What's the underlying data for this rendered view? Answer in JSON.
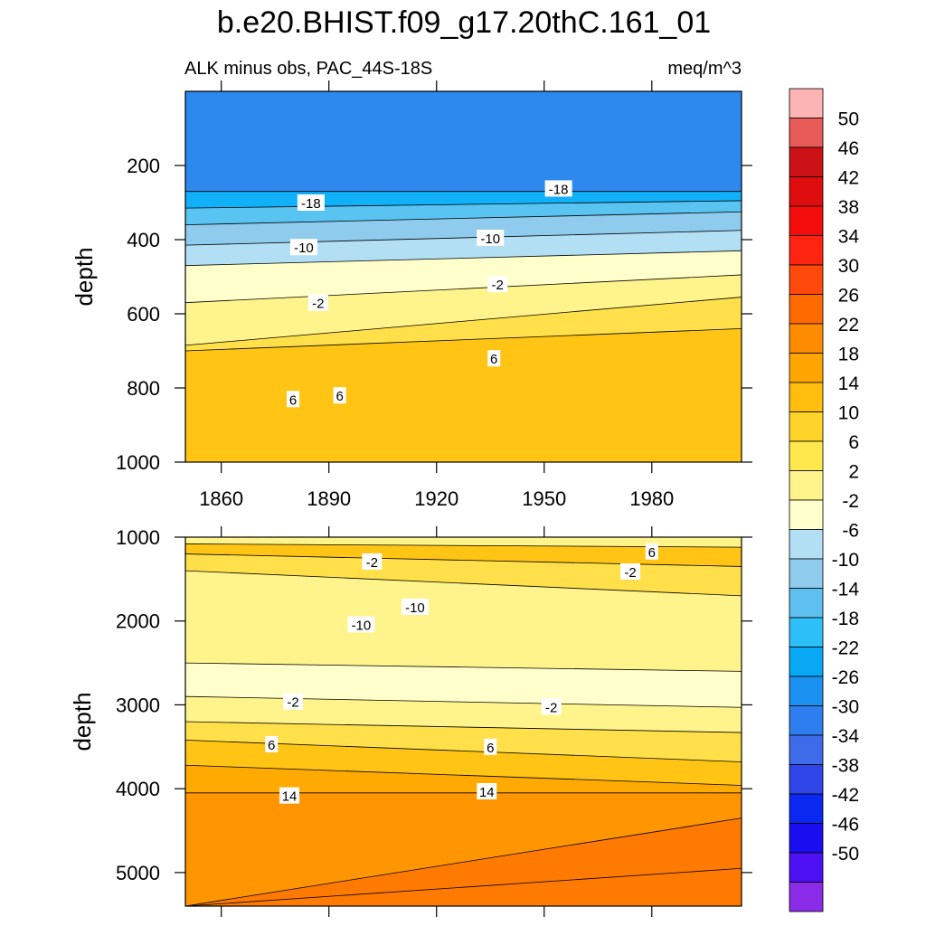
{
  "title": "b.e20.BHIST.f09_g17.20thC.161_01",
  "chart_data": [
    {
      "type": "heatmap",
      "panel": "upper",
      "left_label": "ALK minus obs, PAC_44S-18S",
      "right_label": "meq/m^3",
      "xlabel": "",
      "ylabel": "depth",
      "xlim": [
        1850,
        2005
      ],
      "ylim": [
        0,
        1000
      ],
      "y_inverted": true,
      "x_ticks": [
        1860,
        1890,
        1920,
        1950,
        1980
      ],
      "x_tick_labels": [
        "1860",
        "1890",
        "1920",
        "1950",
        "1980"
      ],
      "y_ticks": [
        200,
        400,
        600,
        800,
        1000
      ],
      "y_tick_labels": [
        "200",
        "400",
        "600",
        "800",
        "1000"
      ],
      "contour_boundaries": [
        {
          "level": -22,
          "depths": [
            270,
            270
          ]
        },
        {
          "level": -18,
          "depths": [
            315,
            295
          ]
        },
        {
          "level": -14,
          "depths": [
            360,
            325
          ]
        },
        {
          "level": -10,
          "depths": [
            415,
            375
          ]
        },
        {
          "level": -6,
          "depths": [
            470,
            430
          ]
        },
        {
          "level": -2,
          "depths": [
            570,
            495
          ]
        },
        {
          "level": 2,
          "depths": [
            685,
            555
          ]
        },
        {
          "level": 6,
          "depths": [
            700,
            640
          ]
        }
      ],
      "contour_labels": [
        {
          "text": "-18",
          "x": 1885,
          "y": 300
        },
        {
          "text": "-18",
          "x": 1954,
          "y": 262
        },
        {
          "text": "-10",
          "x": 1883,
          "y": 420
        },
        {
          "text": "-10",
          "x": 1935,
          "y": 395
        },
        {
          "text": "-2",
          "x": 1887,
          "y": 570
        },
        {
          "text": "-2",
          "x": 1937,
          "y": 520
        },
        {
          "text": "6",
          "x": 1936,
          "y": 720
        },
        {
          "text": "6",
          "x": 1880,
          "y": 830
        },
        {
          "text": "6",
          "x": 1893,
          "y": 820
        }
      ]
    },
    {
      "type": "heatmap",
      "panel": "lower",
      "xlabel": "",
      "ylabel": "depth",
      "xlim": [
        1850,
        2005
      ],
      "ylim": [
        1000,
        5400
      ],
      "y_inverted": true,
      "y_ticks": [
        1000,
        2000,
        3000,
        4000,
        5000
      ],
      "y_tick_labels": [
        "1000",
        "2000",
        "3000",
        "4000",
        "5000"
      ],
      "contour_boundaries": [
        {
          "level": 6,
          "depths": [
            1080,
            1120
          ]
        },
        {
          "level": 2,
          "depths": [
            1200,
            1350
          ]
        },
        {
          "level": -2,
          "depths": [
            1400,
            1700
          ]
        },
        {
          "level": -6,
          "depths": [
            2500,
            2600
          ]
        },
        {
          "level": -2,
          "depths": [
            2900,
            3030
          ]
        },
        {
          "level": 2,
          "depths": [
            3200,
            3330
          ]
        },
        {
          "level": 6,
          "depths": [
            3420,
            3680
          ]
        },
        {
          "level": 10,
          "depths": [
            3720,
            3960
          ]
        },
        {
          "level": 14,
          "depths": [
            4050,
            4050
          ]
        },
        {
          "level": 18,
          "depths": [
            5400,
            4350
          ]
        },
        {
          "level": 22,
          "depths": [
            5400,
            4950
          ]
        }
      ],
      "contour_labels": [
        {
          "text": "6",
          "x": 1980,
          "y": 1170
        },
        {
          "text": "-2",
          "x": 1902,
          "y": 1290
        },
        {
          "text": "-2",
          "x": 1974,
          "y": 1410
        },
        {
          "text": "-10",
          "x": 1914,
          "y": 1830
        },
        {
          "text": "-10",
          "x": 1899,
          "y": 2040
        },
        {
          "text": "-2",
          "x": 1880,
          "y": 2960
        },
        {
          "text": "-2",
          "x": 1952,
          "y": 3020
        },
        {
          "text": "6",
          "x": 1874,
          "y": 3470
        },
        {
          "text": "6",
          "x": 1935,
          "y": 3500
        },
        {
          "text": "14",
          "x": 1879,
          "y": 4080
        },
        {
          "text": "14",
          "x": 1934,
          "y": 4030
        }
      ]
    }
  ],
  "colorbar": {
    "ticks": [
      "50",
      "46",
      "42",
      "38",
      "34",
      "30",
      "26",
      "22",
      "18",
      "14",
      "10",
      "6",
      "2",
      "-2",
      "-6",
      "-10",
      "-14",
      "-18",
      "-22",
      "-26",
      "-30",
      "-34",
      "-38",
      "-42",
      "-46",
      "-50"
    ],
    "colors": [
      "#fdb4b5",
      "#e65a57",
      "#cc1216",
      "#de0c0c",
      "#f20c0c",
      "#ff2412",
      "#ff4a0c",
      "#ff6900",
      "#ff8c00",
      "#ffa500",
      "#ffbe0d",
      "#ffd42a",
      "#ffe84d",
      "#fff48c",
      "#ffffcc",
      "#b3dff5",
      "#8ecbec",
      "#5fbff0",
      "#2dbff7",
      "#08a8f5",
      "#1b91f1",
      "#2f7ef0",
      "#3e6bea",
      "#2f45e8",
      "#0a28f0",
      "#1a0df0",
      "#4c10f2",
      "#8a2be8"
    ]
  },
  "level_colors": {
    "-26": "#2e89ef",
    "-22": "#1b91f1",
    "-18": "#11b1fa",
    "-14": "#59c3f2",
    "-10": "#8ecbec",
    "-6": "#b3dff5",
    "-2": "#ffffcc",
    "2": "#fff48c",
    "6": "#ffe04a",
    "10": "#ffc414",
    "14": "#ffaa00",
    "18": "#ff9500",
    "22": "#ff7a00"
  }
}
